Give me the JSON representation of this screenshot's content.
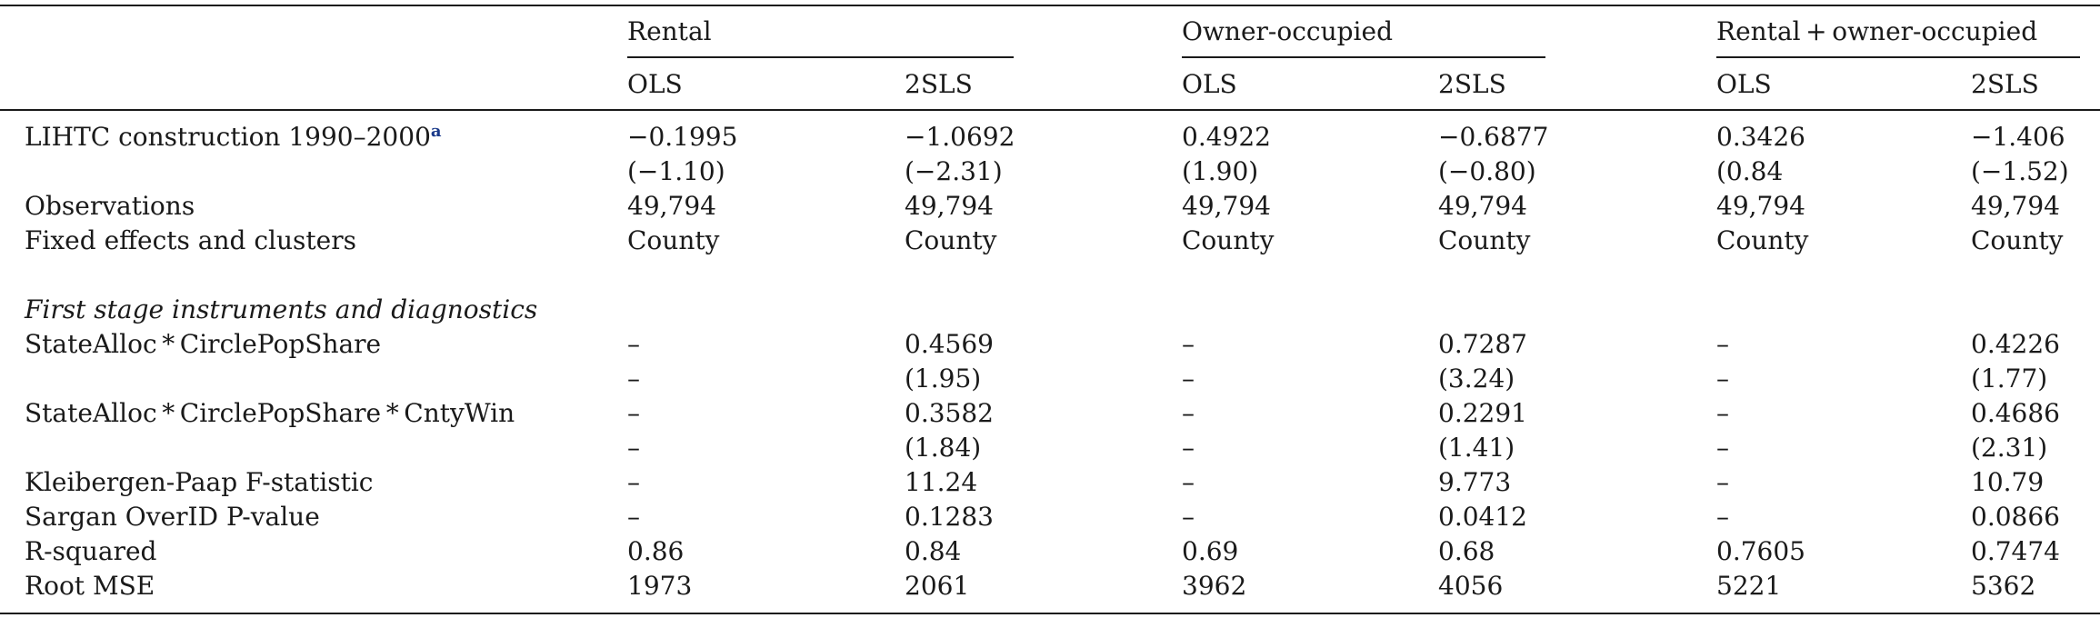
{
  "table": {
    "groups": [
      "Rental",
      "Owner-occupied",
      "Rental + owner-occupied"
    ],
    "columns": [
      "OLS",
      "2SLS",
      "OLS",
      "2SLS",
      "OLS",
      "2SLS"
    ],
    "section_heading": "First stage instruments and diagnostics",
    "footnote_marker": "a",
    "rows": [
      {
        "label": "LIHTC construction 1990–2000",
        "cells": [
          "−0.1995",
          "−1.0692",
          "0.4922",
          "−0.6877",
          "0.3426",
          "−1.406"
        ]
      },
      {
        "label": "",
        "cells": [
          "(−1.10)",
          "(−2.31)",
          "(1.90)",
          "(−0.80)",
          "(0.84",
          "(−1.52)"
        ]
      },
      {
        "label": "Observations",
        "cells": [
          "49,794",
          "49,794",
          "49,794",
          "49,794",
          "49,794",
          "49,794"
        ]
      },
      {
        "label": "Fixed effects and clusters",
        "cells": [
          "County",
          "County",
          "County",
          "County",
          "County",
          "County"
        ]
      },
      {
        "label": "StateAlloc * CirclePopShare",
        "cells": [
          "–",
          "0.4569",
          "–",
          "0.7287",
          "–",
          "0.4226"
        ]
      },
      {
        "label": "",
        "cells": [
          "–",
          "(1.95)",
          "–",
          "(3.24)",
          "–",
          "(1.77)"
        ]
      },
      {
        "label": "StateAlloc * CirclePopShare * CntyWin",
        "cells": [
          "–",
          "0.3582",
          "–",
          "0.2291",
          "–",
          "0.4686"
        ]
      },
      {
        "label": "",
        "cells": [
          "–",
          "(1.84)",
          "–",
          "(1.41)",
          "–",
          "(2.31)"
        ]
      },
      {
        "label": "Kleibergen-Paap F-statistic",
        "cells": [
          "–",
          "11.24",
          "–",
          "9.773",
          "–",
          "10.79"
        ]
      },
      {
        "label": "Sargan OverID P-value",
        "cells": [
          "–",
          "0.1283",
          "–",
          "0.0412",
          "–",
          "0.0866"
        ]
      },
      {
        "label": "R-squared",
        "cells": [
          "0.86",
          "0.84",
          "0.69",
          "0.68",
          "0.7605",
          "0.7474"
        ]
      },
      {
        "label": "Root MSE",
        "cells": [
          "1973",
          "2061",
          "3962",
          "4056",
          "5221",
          "5362"
        ]
      }
    ]
  }
}
